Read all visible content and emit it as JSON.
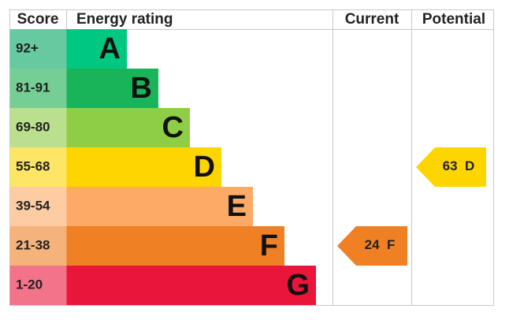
{
  "header": {
    "score": "Score",
    "rating": "Energy rating",
    "current": "Current",
    "potential": "Potential"
  },
  "bands": [
    {
      "score": "92+",
      "letter": "A",
      "color": "#00c781",
      "score_color": "#66c9a0"
    },
    {
      "score": "81-91",
      "letter": "B",
      "color": "#19b459",
      "score_color": "#75cf95"
    },
    {
      "score": "69-80",
      "letter": "C",
      "color": "#8dce46",
      "score_color": "#badf8e"
    },
    {
      "score": "55-68",
      "letter": "D",
      "color": "#ffd500",
      "score_color": "#ffe566"
    },
    {
      "score": "39-54",
      "letter": "E",
      "color": "#fcaa65",
      "score_color": "#fdcca2"
    },
    {
      "score": "21-38",
      "letter": "F",
      "color": "#ef8023",
      "score_color": "#f5b37b"
    },
    {
      "score": "1-20",
      "letter": "G",
      "color": "#e9153b",
      "score_color": "#f2738a"
    }
  ],
  "current": {
    "value": 24,
    "band": "F"
  },
  "potential": {
    "value": 63,
    "band": "D"
  }
}
